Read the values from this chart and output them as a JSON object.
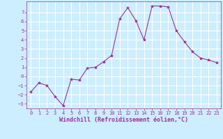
{
  "x": [
    0,
    1,
    2,
    3,
    4,
    5,
    6,
    7,
    8,
    9,
    10,
    11,
    12,
    13,
    14,
    15,
    16,
    17,
    18,
    19,
    20,
    21,
    22,
    23
  ],
  "y": [
    -1.7,
    -0.7,
    -1.0,
    -2.2,
    -3.2,
    -0.3,
    -0.4,
    0.9,
    1.0,
    1.6,
    2.3,
    6.3,
    7.5,
    6.1,
    4.0,
    7.7,
    7.7,
    7.6,
    5.0,
    3.8,
    2.7,
    2.0,
    1.8,
    1.5
  ],
  "line_color": "#993399",
  "marker": "*",
  "marker_size": 3,
  "bg_color": "#cceeff",
  "grid_color": "#ffffff",
  "xlabel": "Windchill (Refroidissement éolien,°C)",
  "xlabel_color": "#993399",
  "tick_color": "#993399",
  "ylim": [
    -3.5,
    8.2
  ],
  "xlim": [
    -0.5,
    23.5
  ],
  "yticks": [
    -3,
    -2,
    -1,
    0,
    1,
    2,
    3,
    4,
    5,
    6,
    7
  ],
  "xticks": [
    0,
    1,
    2,
    3,
    4,
    5,
    6,
    7,
    8,
    9,
    10,
    11,
    12,
    13,
    14,
    15,
    16,
    17,
    18,
    19,
    20,
    21,
    22,
    23
  ],
  "tick_fontsize": 5.0,
  "xlabel_fontsize": 6.0
}
